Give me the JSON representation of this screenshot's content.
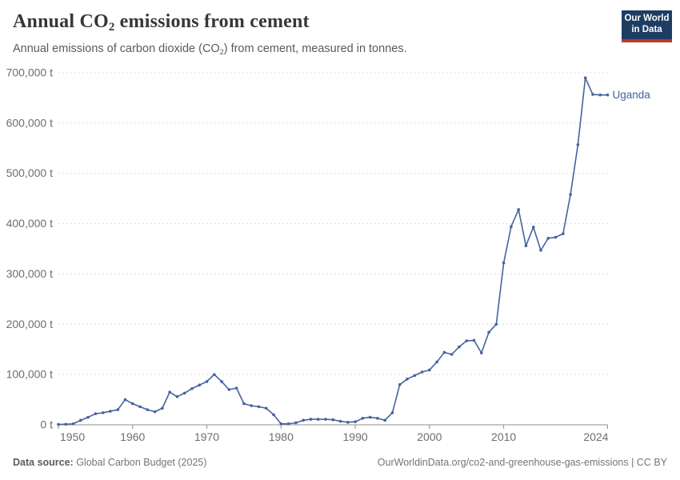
{
  "header": {
    "title_pre": "Annual CO",
    "title_sub": "2",
    "title_post": " emissions from cement",
    "subtitle_pre": "Annual emissions of carbon dioxide (CO",
    "subtitle_sub": "2",
    "subtitle_post": ") from cement, measured in tonnes.",
    "logo_line1": "Our World",
    "logo_line2": "in Data",
    "logo_bg": "#1d3d63",
    "logo_accent": "#c0362c"
  },
  "footer": {
    "source_label": "Data source:",
    "source_value": " Global Carbon Budget (2025)",
    "credit": "OurWorldinData.org/co2-and-greenhouse-gas-emissions | CC BY"
  },
  "chart_data": {
    "type": "line",
    "title": "Annual CO₂ emissions from cement",
    "entity": "Uganda",
    "unit": "t",
    "line_color": "#44639e",
    "grid": "horizontal-dashed",
    "legend_position": "end-of-line-label",
    "ylim": [
      0,
      700000
    ],
    "xlim": [
      1950,
      2024
    ],
    "x_ticks": [
      1950,
      1960,
      1970,
      1980,
      1990,
      2000,
      2010,
      2024
    ],
    "y_ticks": [
      {
        "value": 0,
        "label": "0 t"
      },
      {
        "value": 100000,
        "label": "100,000 t"
      },
      {
        "value": 200000,
        "label": "200,000 t"
      },
      {
        "value": 300000,
        "label": "300,000 t"
      },
      {
        "value": 400000,
        "label": "400,000 t"
      },
      {
        "value": 500000,
        "label": "500,000 t"
      },
      {
        "value": 600000,
        "label": "600,000 t"
      },
      {
        "value": 700000,
        "label": "700,000 t"
      }
    ],
    "x": [
      1950,
      1951,
      1952,
      1953,
      1954,
      1955,
      1956,
      1957,
      1958,
      1959,
      1960,
      1961,
      1962,
      1963,
      1964,
      1965,
      1966,
      1967,
      1968,
      1969,
      1970,
      1971,
      1972,
      1973,
      1974,
      1975,
      1976,
      1977,
      1978,
      1979,
      1980,
      1981,
      1982,
      1983,
      1984,
      1985,
      1986,
      1987,
      1988,
      1989,
      1990,
      1991,
      1992,
      1993,
      1994,
      1995,
      1996,
      1997,
      1998,
      1999,
      2000,
      2001,
      2002,
      2003,
      2004,
      2005,
      2006,
      2007,
      2008,
      2009,
      2010,
      2011,
      2012,
      2013,
      2014,
      2015,
      2016,
      2017,
      2018,
      2019,
      2020,
      2021,
      2022,
      2023,
      2024
    ],
    "values": [
      700,
      1200,
      2000,
      9000,
      15000,
      22000,
      24000,
      27000,
      30000,
      50000,
      42000,
      36000,
      30000,
      26000,
      33000,
      65000,
      56000,
      63000,
      72000,
      79000,
      86000,
      100000,
      86000,
      70000,
      73000,
      42000,
      38000,
      36000,
      33000,
      20000,
      2000,
      2000,
      4000,
      9000,
      11000,
      11000,
      11000,
      10000,
      7000,
      5000,
      6000,
      13000,
      15000,
      13000,
      9000,
      24000,
      80000,
      91000,
      98000,
      105000,
      109000,
      125000,
      144000,
      140000,
      155000,
      167000,
      168000,
      143000,
      184000,
      200000,
      322000,
      394000,
      428000,
      356000,
      393000,
      347000,
      371000,
      373000,
      380000,
      458000,
      557000,
      690000,
      657000,
      656000,
      656000
    ]
  }
}
